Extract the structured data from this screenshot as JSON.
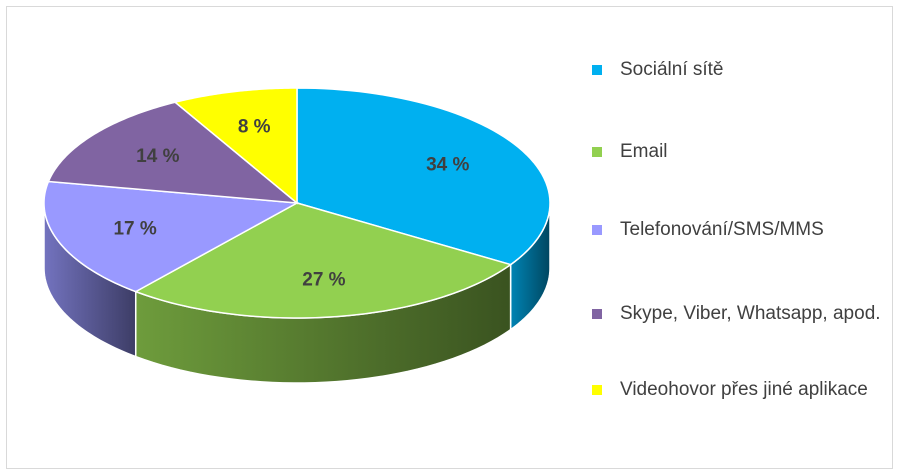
{
  "chart_data": {
    "type": "pie",
    "categories": [
      "Sociální sítě",
      "Email",
      "Telefonování/SMS/MMS",
      "Skype, Viber, Whatsapp, apod.",
      "Videohovor přes jiné aplikace"
    ],
    "values": [
      34,
      27,
      17,
      14,
      8
    ],
    "value_labels": [
      "34 %",
      "27 %",
      "17 %",
      "14 %",
      "8 %"
    ],
    "colors": [
      "#00b0f0",
      "#92d050",
      "#9999ff",
      "#8064a2",
      "#ffff00"
    ],
    "legend": "right"
  }
}
